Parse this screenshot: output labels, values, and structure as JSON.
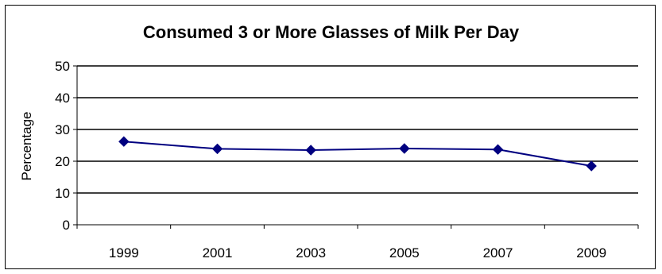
{
  "chart_data": {
    "type": "line",
    "title": "Consumed 3 or More Glasses of Milk Per Day",
    "xlabel": "",
    "ylabel": "Percentage",
    "categories": [
      "1999",
      "2001",
      "2003",
      "2005",
      "2007",
      "2009"
    ],
    "series": [
      {
        "values": [
          26.2,
          23.9,
          23.5,
          24.0,
          23.7,
          18.5
        ],
        "color": "#000080",
        "marker": "diamond"
      }
    ],
    "ylim": [
      0,
      50
    ],
    "yticks": [
      0,
      10,
      20,
      30,
      40,
      50
    ],
    "grid": true,
    "legend": "none"
  }
}
